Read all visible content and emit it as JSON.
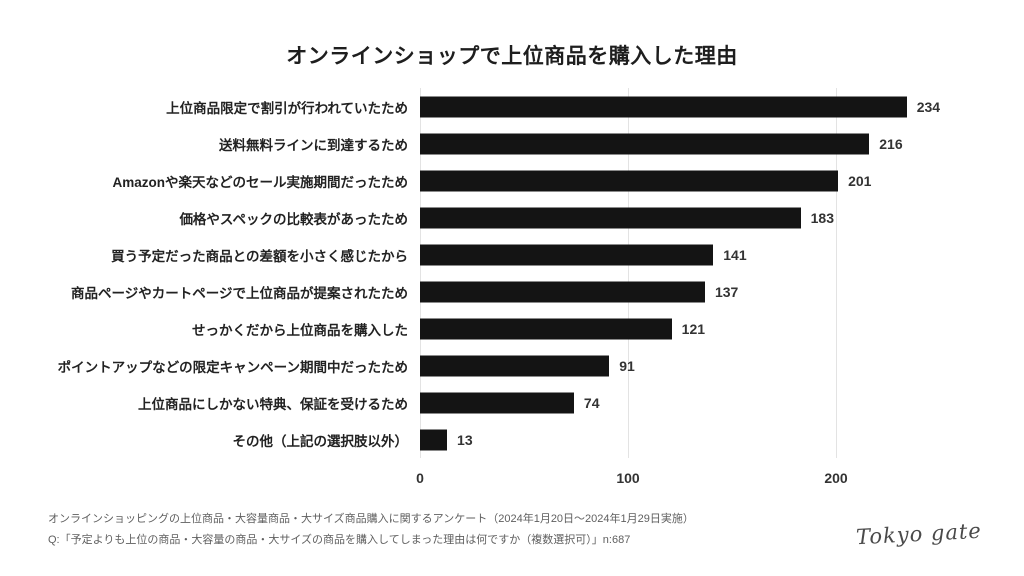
{
  "title": "オンラインショップで上位商品を購入した理由",
  "chart_data": {
    "type": "bar",
    "orientation": "horizontal",
    "categories": [
      "上位商品限定で割引が行われていたため",
      "送料無料ラインに到達するため",
      "Amazonや楽天などのセール実施期間だったため",
      "価格やスペックの比較表があったため",
      "買う予定だった商品との差額を小さく感じたから",
      "商品ページやカートページで上位商品が提案されたため",
      "せっかくだから上位商品を購入した",
      "ポイントアップなどの限定キャンペーン期間中だったため",
      "上位商品にしかない特典、保証を受けるため",
      "その他（上記の選択肢以外）"
    ],
    "values": [
      234,
      216,
      201,
      183,
      141,
      137,
      121,
      91,
      74,
      13
    ],
    "xticks": [
      0,
      100,
      200
    ],
    "xlim": [
      0,
      250
    ],
    "grid": true,
    "value_labels": true,
    "bar_color": "#141414",
    "gridline_color": "#e3e3e3"
  },
  "footer": {
    "line1": "オンラインショッピングの上位商品・大容量商品・大サイズ商品購入に関するアンケート（2024年1月20日〜2024年1月29日実施）",
    "line2": "Q:「予定よりも上位の商品・大容量の商品・大サイズの商品を購入してしまった理由は何ですか（複数選択可）」n:687"
  },
  "logo": {
    "text": "Tokyo gate"
  }
}
